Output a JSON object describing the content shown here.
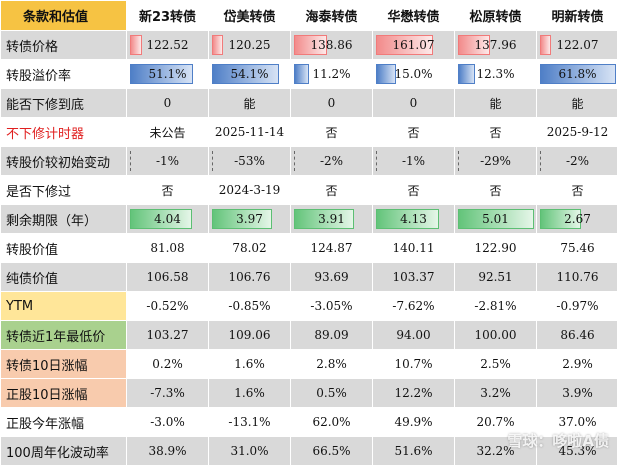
{
  "header": {
    "title": "条款和估值",
    "bonds": [
      "新23转债",
      "岱美转债",
      "海泰转债",
      "华懋转债",
      "松原转债",
      "明新转债"
    ]
  },
  "rows": [
    {
      "label": "转债价格",
      "values": [
        "122.52",
        "120.25",
        "138.86",
        "161.07",
        "137.96",
        "122.07"
      ],
      "levels": [
        0.13,
        0.12,
        0.42,
        0.74,
        0.41,
        0.12
      ]
    },
    {
      "label": "转股溢价率",
      "values": [
        "51.1%",
        "54.1%",
        "11.2%",
        "15.0%",
        "12.3%",
        "61.8%"
      ],
      "levels": [
        0.83,
        0.88,
        0.18,
        0.24,
        0.2,
        1.0
      ]
    },
    {
      "label": "能否下修到底",
      "values": [
        "0",
        "能",
        "0",
        "0",
        "能",
        "能"
      ]
    },
    {
      "label": "不下修计时器",
      "values": [
        "未公告",
        "2025-11-14",
        "否",
        "否",
        "否",
        "2025-9-12"
      ]
    },
    {
      "label": "转股价较初始变动",
      "values": [
        "-1%",
        "-53%",
        "-2%",
        "-1%",
        "-29%",
        "-2%"
      ]
    },
    {
      "label": "是否下修过",
      "values": [
        "否",
        "2024-3-19",
        "否",
        "否",
        "否",
        "否"
      ]
    },
    {
      "label": "剩余期限（年）",
      "values": [
        "4.04",
        "3.97",
        "3.91",
        "4.13",
        "5.01",
        "2.67"
      ],
      "levels": [
        0.81,
        0.79,
        0.78,
        0.82,
        1.0,
        0.53
      ]
    },
    {
      "label": "转股价值",
      "values": [
        "81.08",
        "78.02",
        "124.87",
        "140.11",
        "122.90",
        "75.46"
      ]
    },
    {
      "label": "纯债价值",
      "values": [
        "106.58",
        "106.76",
        "93.69",
        "103.37",
        "92.51",
        "110.76"
      ]
    },
    {
      "label": "YTM",
      "values": [
        "-0.52%",
        "-0.85%",
        "-3.05%",
        "-7.62%",
        "-2.81%",
        "-0.97%"
      ]
    },
    {
      "label": "转债近1年最低价",
      "values": [
        "103.27",
        "109.06",
        "89.09",
        "94.00",
        "100.00",
        "86.46"
      ]
    },
    {
      "label": "转债10日涨幅",
      "values": [
        "0.2%",
        "1.6%",
        "2.8%",
        "10.7%",
        "2.5%",
        "2.9%"
      ]
    },
    {
      "label": "正股10日涨幅",
      "values": [
        "-7.3%",
        "1.6%",
        "0.5%",
        "12.2%",
        "3.2%",
        "3.9%"
      ]
    },
    {
      "label": "正股今年涨幅",
      "values": [
        "-3.0%",
        "-13.1%",
        "62.0%",
        "49.9%",
        "20.7%",
        "37.0%"
      ]
    },
    {
      "label": "100周年化波动率",
      "values": [
        "38.9%",
        "31.0%",
        "66.5%",
        "51.6%",
        "32.2%",
        "45.3%"
      ]
    }
  ],
  "colors": {
    "header_label_bg": "#f6c343",
    "header_bg": "#ffffff",
    "gray_row": "#d9d9d9",
    "ytm_label_bg": "#ffe699",
    "lowprice_label_bg": "#a9d18e",
    "change_label_bg": "#f8cbad",
    "red_text": "#e02020",
    "bar_red": "#f28b8b",
    "bar_blue": "#4f7fc7",
    "bar_green": "#63c47a"
  },
  "watermark": "雪球：哆啦A债"
}
